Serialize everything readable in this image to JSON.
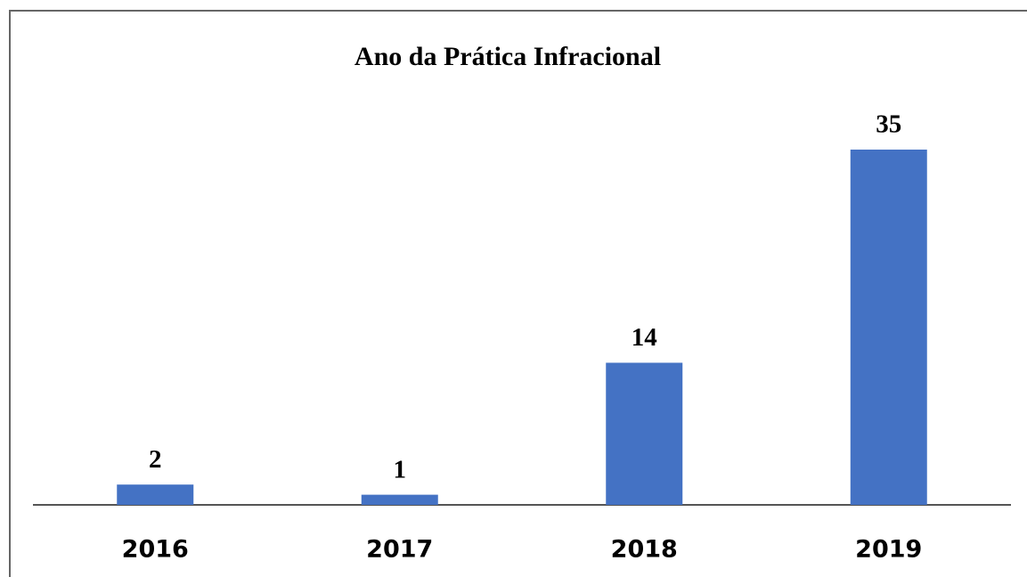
{
  "chart_data": {
    "type": "bar",
    "title": "Ano da Prática Infracional",
    "categories": [
      "2016",
      "2017",
      "2018",
      "2019"
    ],
    "values": [
      2,
      1,
      14,
      35
    ],
    "color": "#4472c4"
  }
}
